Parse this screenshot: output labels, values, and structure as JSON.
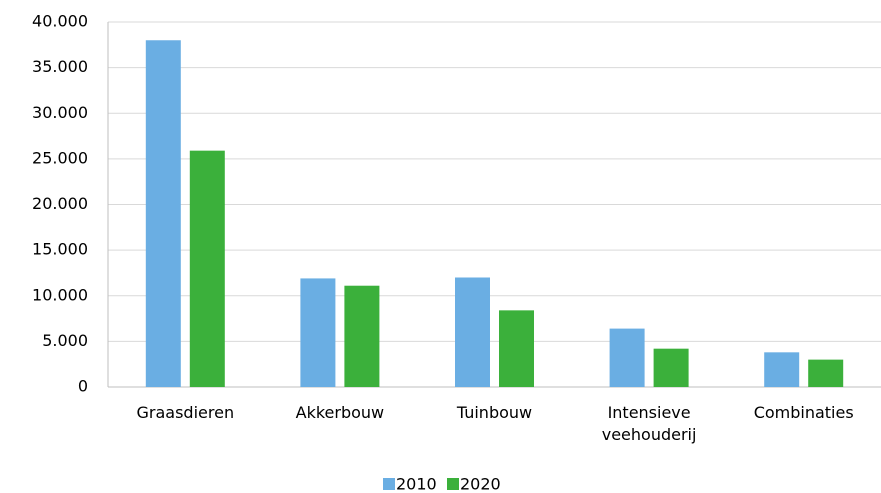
{
  "chart_data": {
    "type": "bar",
    "categories": [
      "Graasdieren",
      "Akkerbouw",
      "Tuinbouw",
      "Intensieve veehouderij",
      "Combinaties"
    ],
    "series": [
      {
        "name": "2010",
        "color": "#6aaee3",
        "values": [
          38000,
          11900,
          12000,
          6400,
          3800
        ]
      },
      {
        "name": "2020",
        "color": "#3bb03b",
        "values": [
          25900,
          11100,
          8400,
          4200,
          3000
        ]
      }
    ],
    "ylim": [
      0,
      40000
    ],
    "yticks": [
      0,
      {
        "value": 5000,
        "label": "5.000"
      },
      {
        "value": 10000,
        "label": "10.000"
      },
      {
        "value": 15000,
        "label": "15.000"
      },
      {
        "value": 20000,
        "label": "20.000"
      },
      {
        "value": 25000,
        "label": "25.000"
      },
      {
        "value": 30000,
        "label": "30.000"
      },
      {
        "value": 35000,
        "label": "35.000"
      },
      {
        "value": 40000,
        "label": "40.000"
      }
    ],
    "grid": true,
    "legend": "bottom"
  }
}
